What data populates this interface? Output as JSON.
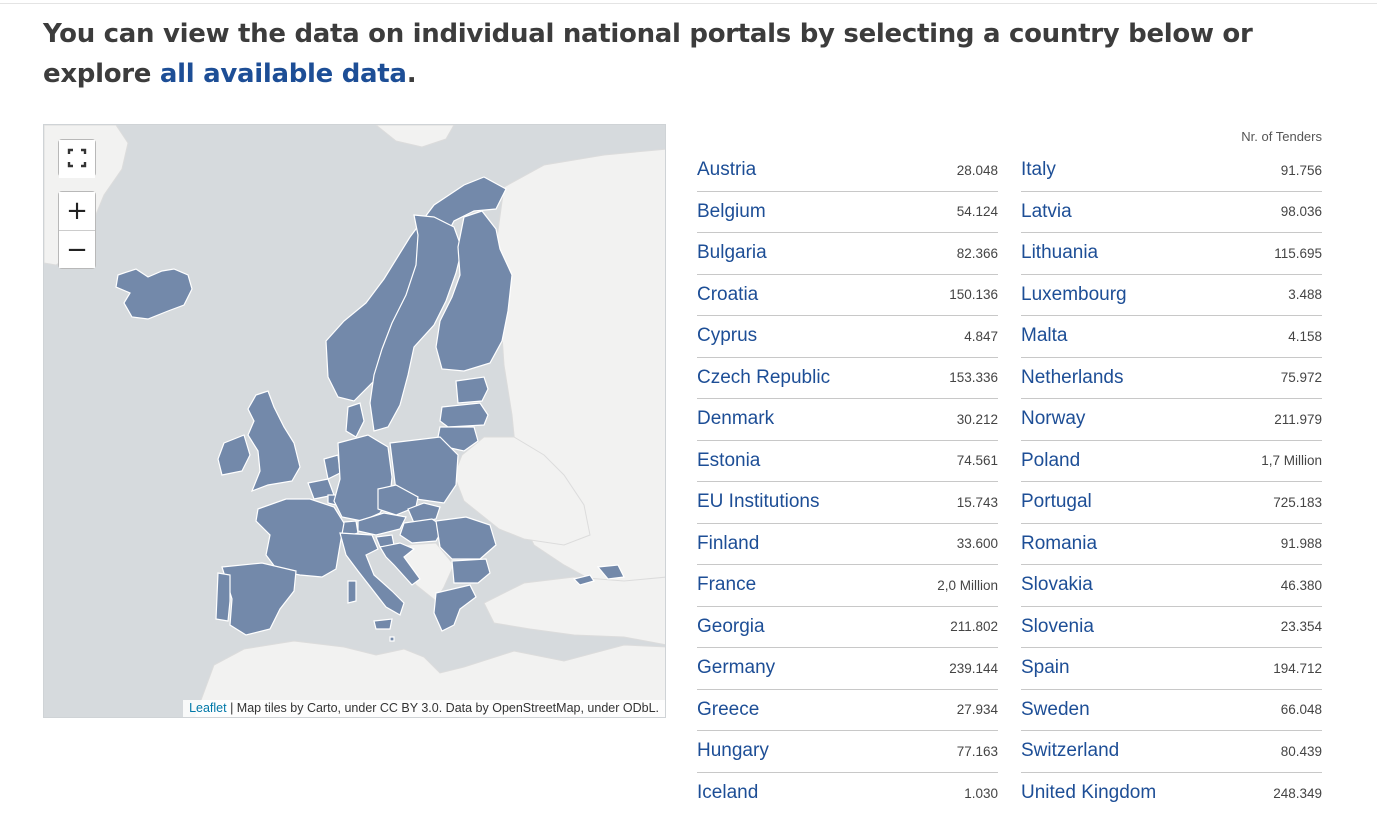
{
  "headline": {
    "text": "You can view the data on individual national portals by selecting a country below or explore ",
    "link": "all available data",
    "end": "."
  },
  "map": {
    "fullscreen_icon": "fullscreen-icon",
    "zoom_in": "+",
    "zoom_out": "−",
    "attribution_link": "Leaflet",
    "attribution_text": " | Map tiles by Carto, under CC BY 3.0. Data by OpenStreetMap, under ODbL.",
    "colors": {
      "sea": "#d6dadd",
      "land": "#f2f2f1",
      "highlight": "#7389aa",
      "border": "#ffffff"
    }
  },
  "table": {
    "header": "Nr. of Tenders",
    "left": [
      {
        "name": "Austria",
        "value": "28.048"
      },
      {
        "name": "Belgium",
        "value": "54.124"
      },
      {
        "name": "Bulgaria",
        "value": "82.366"
      },
      {
        "name": "Croatia",
        "value": "150.136"
      },
      {
        "name": "Cyprus",
        "value": "4.847"
      },
      {
        "name": "Czech Republic",
        "value": "153.336"
      },
      {
        "name": "Denmark",
        "value": "30.212"
      },
      {
        "name": "Estonia",
        "value": "74.561"
      },
      {
        "name": "EU Institutions",
        "value": "15.743"
      },
      {
        "name": "Finland",
        "value": "33.600"
      },
      {
        "name": "France",
        "value": "2,0 Million"
      },
      {
        "name": "Georgia",
        "value": "211.802"
      },
      {
        "name": "Germany",
        "value": "239.144"
      },
      {
        "name": "Greece",
        "value": "27.934"
      },
      {
        "name": "Hungary",
        "value": "77.163"
      },
      {
        "name": "Iceland",
        "value": "1.030"
      }
    ],
    "right": [
      {
        "name": "Italy",
        "value": "91.756"
      },
      {
        "name": "Latvia",
        "value": "98.036"
      },
      {
        "name": "Lithuania",
        "value": "115.695"
      },
      {
        "name": "Luxembourg",
        "value": "3.488"
      },
      {
        "name": "Malta",
        "value": "4.158"
      },
      {
        "name": "Netherlands",
        "value": "75.972"
      },
      {
        "name": "Norway",
        "value": "211.979"
      },
      {
        "name": "Poland",
        "value": "1,7 Million"
      },
      {
        "name": "Portugal",
        "value": "725.183"
      },
      {
        "name": "Romania",
        "value": "91.988"
      },
      {
        "name": "Slovakia",
        "value": "46.380"
      },
      {
        "name": "Slovenia",
        "value": "23.354"
      },
      {
        "name": "Spain",
        "value": "194.712"
      },
      {
        "name": "Sweden",
        "value": "66.048"
      },
      {
        "name": "Switzerland",
        "value": "80.439"
      },
      {
        "name": "United Kingdom",
        "value": "248.349"
      }
    ]
  }
}
